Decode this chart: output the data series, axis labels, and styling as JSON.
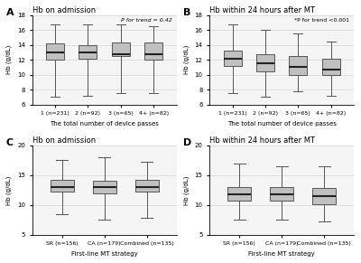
{
  "panel_A": {
    "title": "Hb on admission",
    "label": "A",
    "ptext": "P for trend = 0.42",
    "xlabel": "The total number of device passes",
    "ylabel": "Hb (g/dL)",
    "ylim": [
      6,
      18
    ],
    "yticks": [
      6,
      8,
      10,
      12,
      14,
      16,
      18
    ],
    "categories": [
      "1 (n=231)",
      "2 (n=92)",
      "3 (n=65)",
      "4+ (n=82)"
    ],
    "boxes": [
      {
        "whislo": 7.0,
        "q1": 12.0,
        "med": 13.0,
        "q3": 14.2,
        "whishi": 16.8
      },
      {
        "whislo": 7.2,
        "q1": 12.2,
        "med": 13.0,
        "q3": 14.0,
        "whishi": 16.8
      },
      {
        "whislo": 7.5,
        "q1": 12.5,
        "med": 12.8,
        "q3": 14.3,
        "whishi": 16.8
      },
      {
        "whislo": 7.5,
        "q1": 12.0,
        "med": 12.7,
        "q3": 14.3,
        "whishi": 16.5
      }
    ]
  },
  "panel_B": {
    "title": "Hb within 24 hours after MT",
    "label": "B",
    "ptext": "*P for trend <0.001",
    "xlabel": "The total number of device passes",
    "ylabel": "Hb (g/dL)",
    "ylim": [
      6,
      18
    ],
    "yticks": [
      6,
      8,
      10,
      12,
      14,
      16,
      18
    ],
    "categories": [
      "1 (n=231)",
      "2 (n=92)",
      "3 (n=65)",
      "4+ (n=82)"
    ],
    "boxes": [
      {
        "whislo": 7.5,
        "q1": 11.2,
        "med": 12.2,
        "q3": 13.3,
        "whishi": 16.8
      },
      {
        "whislo": 7.0,
        "q1": 10.5,
        "med": 11.5,
        "q3": 12.8,
        "whishi": 16.0
      },
      {
        "whislo": 7.8,
        "q1": 10.0,
        "med": 11.0,
        "q3": 12.5,
        "whishi": 15.5
      },
      {
        "whislo": 7.2,
        "q1": 10.0,
        "med": 10.7,
        "q3": 12.2,
        "whishi": 14.5
      }
    ]
  },
  "panel_C": {
    "title": "Hb on admission",
    "label": "C",
    "ptext": null,
    "xlabel": "First-line MT strategy",
    "ylabel": "Hb (g/dL)",
    "ylim": [
      5,
      20
    ],
    "yticks": [
      5,
      10,
      15,
      20
    ],
    "categories": [
      "SR (n=156)",
      "CA (n=179)",
      "Combined (n=135)"
    ],
    "boxes": [
      {
        "whislo": 8.5,
        "q1": 12.2,
        "med": 13.0,
        "q3": 14.2,
        "whishi": 17.5
      },
      {
        "whislo": 7.5,
        "q1": 12.0,
        "med": 13.0,
        "q3": 14.0,
        "whishi": 18.0
      },
      {
        "whislo": 7.8,
        "q1": 12.2,
        "med": 13.0,
        "q3": 14.2,
        "whishi": 17.2
      }
    ]
  },
  "panel_D": {
    "title": "Hb within 24 hours after MT",
    "label": "D",
    "ptext": null,
    "xlabel": "First-line MT strategy",
    "ylabel": "Hb (g/dL)",
    "ylim": [
      5,
      20
    ],
    "yticks": [
      5,
      10,
      15,
      20
    ],
    "categories": [
      "SR (n=156)",
      "CA (n=179)",
      "Combined (n=135)"
    ],
    "boxes": [
      {
        "whislo": 7.5,
        "q1": 10.8,
        "med": 11.8,
        "q3": 13.0,
        "whishi": 17.0
      },
      {
        "whislo": 7.5,
        "q1": 10.8,
        "med": 11.8,
        "q3": 13.0,
        "whishi": 16.5
      },
      {
        "whislo": 7.2,
        "q1": 10.2,
        "med": 11.5,
        "q3": 12.8,
        "whishi": 16.5
      }
    ]
  },
  "box_color": "#c0c0c0",
  "box_edge_color": "#555555",
  "median_color": "#222222",
  "whisker_color": "#555555",
  "cap_color": "#555555",
  "flier_color": "#555555",
  "bg_color": "#f5f5f5",
  "fig_bg_color": "#ffffff"
}
